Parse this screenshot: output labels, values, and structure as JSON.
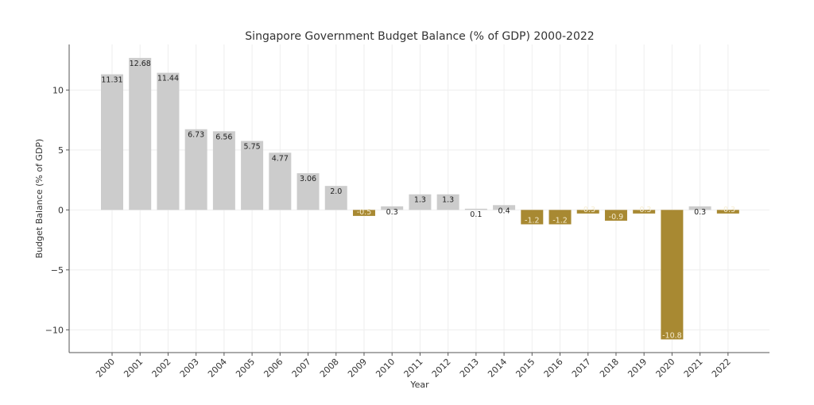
{
  "chart_data": {
    "type": "bar",
    "title": "Singapore Government Budget Balance (% of GDP) 2000-2022",
    "xlabel": "Year",
    "ylabel": "Budget Balance (% of GDP)",
    "categories": [
      "2000",
      "2001",
      "2002",
      "2003",
      "2004",
      "2005",
      "2006",
      "2007",
      "2008",
      "2009",
      "2010",
      "2011",
      "2012",
      "2013",
      "2014",
      "2015",
      "2016",
      "2017",
      "2018",
      "2019",
      "2020",
      "2021",
      "2022"
    ],
    "values": [
      11.31,
      12.68,
      11.44,
      6.73,
      6.56,
      5.75,
      4.77,
      3.06,
      2.0,
      -0.5,
      0.3,
      1.3,
      1.3,
      0.1,
      0.4,
      -1.2,
      -1.2,
      -0.3,
      -0.9,
      -0.3,
      -10.8,
      0.3,
      -0.3
    ],
    "data_labels": [
      "11.31",
      "12.68",
      "11.44",
      "6.73",
      "6.56",
      "5.75",
      "4.77",
      "3.06",
      "2.0",
      "-0.5",
      "0.3",
      "1.3",
      "1.3",
      "0.1",
      "0.4",
      "-1.2",
      "-1.2",
      "-0.3",
      "-0.9",
      "-0.3",
      "-10.8",
      "0.3",
      "-0.3"
    ],
    "ylim": [
      -11.9,
      13.8
    ],
    "yticks": [
      -10,
      -5,
      0,
      5,
      10
    ],
    "ytick_labels": [
      "−10",
      "−5",
      "0",
      "5",
      "10"
    ],
    "grid": true,
    "colors": {
      "positive": "#cccccc",
      "negative": "#a88932",
      "positive_label": "#222222",
      "negative_label": "#f5ecd0",
      "grid": "#eeeeee",
      "axis": "#555555"
    }
  }
}
